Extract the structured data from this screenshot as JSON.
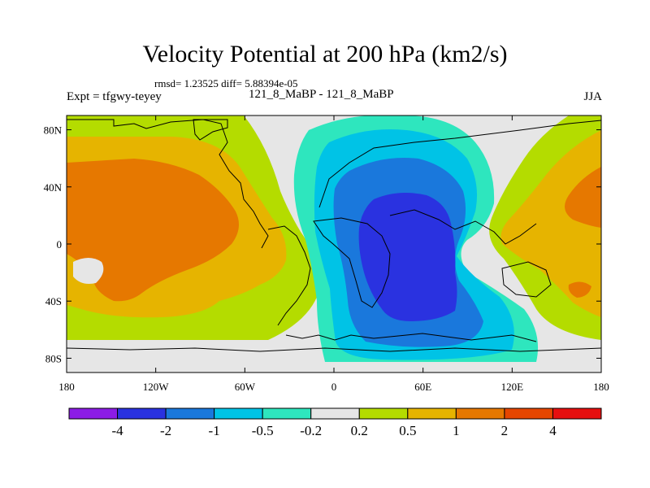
{
  "title": "Velocity Potential at 200 hPa (km2/s)",
  "stats": "rmsd= 1.23525 diff= 5.88394e-05",
  "experiment": "Expt = tfgwy-teyey",
  "cases": "121_8_MaBP - 121_8_MaBP",
  "season": "JJA",
  "map": {
    "lon_range": [
      -180,
      180
    ],
    "lat_range": [
      -90,
      90
    ],
    "x_ticks": [
      {
        "value": -180,
        "label": "180"
      },
      {
        "value": -120,
        "label": "120W"
      },
      {
        "value": -60,
        "label": "60W"
      },
      {
        "value": 0,
        "label": "0"
      },
      {
        "value": 60,
        "label": "60E"
      },
      {
        "value": 120,
        "label": "120E"
      },
      {
        "value": 180,
        "label": "180"
      }
    ],
    "y_ticks": [
      {
        "value": 80,
        "label": "80N"
      },
      {
        "value": 40,
        "label": "40N"
      },
      {
        "value": 0,
        "label": "0"
      },
      {
        "value": -40,
        "label": "40S"
      },
      {
        "value": -80,
        "label": "80S"
      }
    ]
  },
  "colorbar": {
    "colors": [
      "#8c1ce6",
      "#2a32e0",
      "#1a78dc",
      "#00c3e6",
      "#2ee6be",
      "#e6e6e6",
      "#b4dc00",
      "#e6b400",
      "#e67800",
      "#e64600",
      "#e60f0f"
    ],
    "labels": [
      "-4",
      "-2",
      "-1",
      "-0.5",
      "-0.2",
      "0.2",
      "0.5",
      "1",
      "2",
      "4"
    ]
  },
  "chart_data": {
    "type": "heatmap",
    "title": "Velocity Potential at 200 hPa (km2/s)",
    "units": "km2/s",
    "levels": [
      -4,
      -2,
      -1,
      -0.5,
      -0.2,
      0.2,
      0.5,
      1,
      2,
      4
    ],
    "fields": [
      {
        "name": "positive-center-pacific",
        "lon": -130,
        "lat": 20,
        "peak": 1.5
      },
      {
        "name": "positive-lobe-far-east",
        "lon": 165,
        "lat": 30,
        "peak": 1.4
      },
      {
        "name": "positive-lobe-south-pacific",
        "lon": 170,
        "lat": -40,
        "peak": 1.2
      },
      {
        "name": "negative-center-africa-asia",
        "lon": 55,
        "lat": 5,
        "peak": -2.4
      }
    ]
  }
}
